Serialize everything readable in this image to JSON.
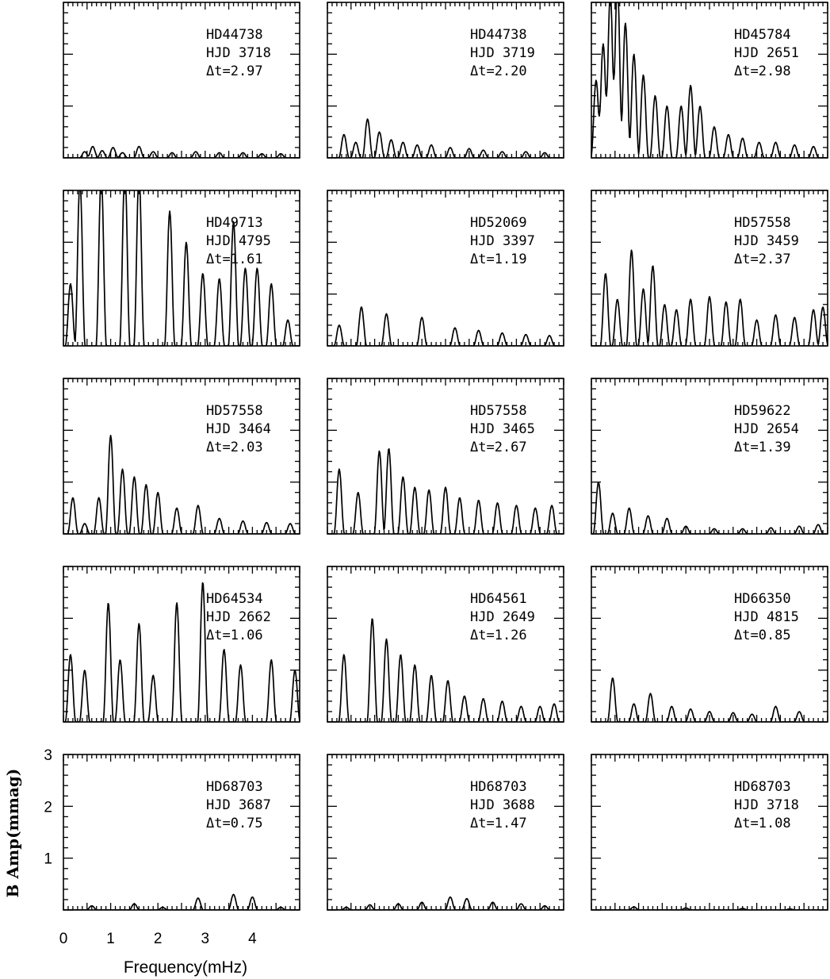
{
  "chart_data": {
    "type": "line",
    "xlabel": "Frequency(mHz)",
    "ylabel": "B Amp(mmag)",
    "xlim": [
      0,
      5
    ],
    "ylim": [
      0,
      3
    ],
    "xticks": [
      "0",
      "1",
      "2",
      "3",
      "4"
    ],
    "yticks": [
      "1",
      "2",
      "3"
    ],
    "panels": [
      {
        "star": "HD44738",
        "hjd": "HJD 3718",
        "dt": "Δt=2.97",
        "peaks": [
          [
            0.45,
            0.12
          ],
          [
            0.62,
            0.22
          ],
          [
            0.82,
            0.14
          ],
          [
            1.05,
            0.2
          ],
          [
            1.25,
            0.1
          ],
          [
            1.6,
            0.22
          ],
          [
            1.9,
            0.12
          ],
          [
            2.3,
            0.1
          ],
          [
            2.8,
            0.12
          ],
          [
            3.3,
            0.1
          ],
          [
            3.8,
            0.1
          ],
          [
            4.2,
            0.08
          ],
          [
            4.6,
            0.08
          ]
        ]
      },
      {
        "star": "HD44738",
        "hjd": "HJD 3719",
        "dt": "Δt=2.20",
        "peaks": [
          [
            0.35,
            0.45
          ],
          [
            0.6,
            0.3
          ],
          [
            0.85,
            0.75
          ],
          [
            1.1,
            0.5
          ],
          [
            1.35,
            0.35
          ],
          [
            1.6,
            0.3
          ],
          [
            1.9,
            0.25
          ],
          [
            2.2,
            0.25
          ],
          [
            2.6,
            0.2
          ],
          [
            3.0,
            0.18
          ],
          [
            3.3,
            0.15
          ],
          [
            3.7,
            0.12
          ],
          [
            4.2,
            0.12
          ],
          [
            4.6,
            0.1
          ]
        ]
      },
      {
        "star": "HD45784",
        "hjd": "HJD 2651",
        "dt": "Δt=2.98",
        "peaks": [
          [
            0.1,
            1.5
          ],
          [
            0.25,
            2.2
          ],
          [
            0.4,
            3.2
          ],
          [
            0.55,
            3.4
          ],
          [
            0.72,
            2.6
          ],
          [
            0.9,
            2.0
          ],
          [
            1.1,
            1.6
          ],
          [
            1.35,
            1.2
          ],
          [
            1.6,
            1.0
          ],
          [
            1.9,
            1.0
          ],
          [
            2.1,
            1.4
          ],
          [
            2.3,
            1.0
          ],
          [
            2.6,
            0.6
          ],
          [
            2.9,
            0.45
          ],
          [
            3.2,
            0.38
          ],
          [
            3.55,
            0.3
          ],
          [
            3.9,
            0.3
          ],
          [
            4.3,
            0.25
          ],
          [
            4.7,
            0.22
          ]
        ]
      },
      {
        "star": "HD49713",
        "hjd": "HJD 4795",
        "dt": "Δt=1.61",
        "peaks": [
          [
            0.15,
            1.2
          ],
          [
            0.35,
            3.2
          ],
          [
            0.8,
            3.3
          ],
          [
            1.3,
            3.4
          ],
          [
            1.6,
            3.3
          ],
          [
            2.25,
            2.6
          ],
          [
            2.6,
            2.0
          ],
          [
            2.95,
            1.4
          ],
          [
            3.3,
            1.3
          ],
          [
            3.6,
            2.4
          ],
          [
            3.85,
            1.5
          ],
          [
            4.1,
            1.5
          ],
          [
            4.4,
            1.2
          ],
          [
            4.75,
            0.5
          ]
        ]
      },
      {
        "star": "HD52069",
        "hjd": "HJD 3397",
        "dt": "Δt=1.19",
        "peaks": [
          [
            0.25,
            0.4
          ],
          [
            0.72,
            0.75
          ],
          [
            1.25,
            0.62
          ],
          [
            2.0,
            0.55
          ],
          [
            2.7,
            0.35
          ],
          [
            3.2,
            0.3
          ],
          [
            3.7,
            0.25
          ],
          [
            4.2,
            0.22
          ],
          [
            4.7,
            0.2
          ]
        ]
      },
      {
        "star": "HD57558",
        "hjd": "HJD 3459",
        "dt": "Δt=2.37",
        "peaks": [
          [
            0.3,
            1.4
          ],
          [
            0.55,
            0.9
          ],
          [
            0.85,
            1.85
          ],
          [
            1.1,
            1.1
          ],
          [
            1.3,
            1.55
          ],
          [
            1.55,
            0.8
          ],
          [
            1.8,
            0.7
          ],
          [
            2.1,
            0.9
          ],
          [
            2.5,
            0.95
          ],
          [
            2.85,
            0.85
          ],
          [
            3.15,
            0.9
          ],
          [
            3.5,
            0.5
          ],
          [
            3.9,
            0.6
          ],
          [
            4.3,
            0.55
          ],
          [
            4.7,
            0.7
          ],
          [
            4.9,
            0.75
          ]
        ]
      },
      {
        "star": "HD57558",
        "hjd": "HJD 3464",
        "dt": "Δt=2.03",
        "peaks": [
          [
            0.2,
            0.7
          ],
          [
            0.45,
            0.2
          ],
          [
            0.75,
            0.7
          ],
          [
            1.0,
            1.9
          ],
          [
            1.25,
            1.25
          ],
          [
            1.5,
            1.1
          ],
          [
            1.75,
            0.95
          ],
          [
            2.0,
            0.8
          ],
          [
            2.4,
            0.5
          ],
          [
            2.85,
            0.55
          ],
          [
            3.3,
            0.3
          ],
          [
            3.8,
            0.25
          ],
          [
            4.3,
            0.22
          ],
          [
            4.8,
            0.2
          ]
        ]
      },
      {
        "star": "HD57558",
        "hjd": "HJD 3465",
        "dt": "Δt=2.67",
        "peaks": [
          [
            0.25,
            1.25
          ],
          [
            0.65,
            0.8
          ],
          [
            1.1,
            1.6
          ],
          [
            1.3,
            1.65
          ],
          [
            1.6,
            1.1
          ],
          [
            1.85,
            0.9
          ],
          [
            2.15,
            0.85
          ],
          [
            2.5,
            0.9
          ],
          [
            2.8,
            0.7
          ],
          [
            3.2,
            0.65
          ],
          [
            3.6,
            0.6
          ],
          [
            4.0,
            0.55
          ],
          [
            4.4,
            0.5
          ],
          [
            4.75,
            0.55
          ]
        ]
      },
      {
        "star": "HD59622",
        "hjd": "HJD 2654",
        "dt": "Δt=1.39",
        "peaks": [
          [
            0.15,
            1.0
          ],
          [
            0.45,
            0.4
          ],
          [
            0.8,
            0.5
          ],
          [
            1.2,
            0.35
          ],
          [
            1.6,
            0.3
          ],
          [
            2.0,
            0.15
          ],
          [
            2.6,
            0.1
          ],
          [
            3.2,
            0.1
          ],
          [
            3.8,
            0.12
          ],
          [
            4.4,
            0.15
          ],
          [
            4.8,
            0.18
          ]
        ]
      },
      {
        "star": "HD64534",
        "hjd": "HJD 2662",
        "dt": "Δt=1.06",
        "peaks": [
          [
            0.15,
            1.3
          ],
          [
            0.45,
            1.0
          ],
          [
            0.95,
            2.3
          ],
          [
            1.2,
            1.2
          ],
          [
            1.6,
            1.9
          ],
          [
            1.9,
            0.9
          ],
          [
            2.4,
            2.3
          ],
          [
            2.95,
            2.7
          ],
          [
            3.4,
            1.4
          ],
          [
            3.75,
            1.1
          ],
          [
            4.4,
            1.2
          ],
          [
            4.9,
            1.0
          ]
        ]
      },
      {
        "star": "HD64561",
        "hjd": "HJD 2649",
        "dt": "Δt=1.26",
        "peaks": [
          [
            0.35,
            1.3
          ],
          [
            0.95,
            2.0
          ],
          [
            1.25,
            1.6
          ],
          [
            1.55,
            1.3
          ],
          [
            1.85,
            1.1
          ],
          [
            2.2,
            0.9
          ],
          [
            2.55,
            0.8
          ],
          [
            2.9,
            0.5
          ],
          [
            3.3,
            0.45
          ],
          [
            3.7,
            0.4
          ],
          [
            4.1,
            0.3
          ],
          [
            4.5,
            0.3
          ],
          [
            4.8,
            0.35
          ]
        ]
      },
      {
        "star": "HD66350",
        "hjd": "HJD 4815",
        "dt": "Δt=0.85",
        "peaks": [
          [
            0.45,
            0.85
          ],
          [
            0.9,
            0.35
          ],
          [
            1.25,
            0.55
          ],
          [
            1.7,
            0.3
          ],
          [
            2.1,
            0.25
          ],
          [
            2.5,
            0.2
          ],
          [
            3.0,
            0.18
          ],
          [
            3.4,
            0.15
          ],
          [
            3.9,
            0.3
          ],
          [
            4.4,
            0.2
          ]
        ]
      },
      {
        "star": "HD68703",
        "hjd": "HJD 3687",
        "dt": "Δt=0.75",
        "peaks": [
          [
            0.6,
            0.08
          ],
          [
            1.5,
            0.12
          ],
          [
            2.1,
            0.05
          ],
          [
            2.85,
            0.23
          ],
          [
            3.6,
            0.3
          ],
          [
            4.0,
            0.25
          ],
          [
            4.6,
            0.05
          ]
        ]
      },
      {
        "star": "HD68703",
        "hjd": "HJD 3688",
        "dt": "Δt=1.47",
        "peaks": [
          [
            0.4,
            0.05
          ],
          [
            0.9,
            0.1
          ],
          [
            1.5,
            0.12
          ],
          [
            2.0,
            0.15
          ],
          [
            2.6,
            0.25
          ],
          [
            2.95,
            0.22
          ],
          [
            3.5,
            0.15
          ],
          [
            4.1,
            0.12
          ],
          [
            4.6,
            0.08
          ]
        ]
      },
      {
        "star": "HD68703",
        "hjd": "HJD 3718",
        "dt": "Δt=1.08",
        "peaks": [
          [
            0.9,
            0.06
          ],
          [
            2.0,
            0.04
          ],
          [
            3.2,
            0.03
          ],
          [
            4.2,
            0.02
          ]
        ]
      }
    ]
  }
}
